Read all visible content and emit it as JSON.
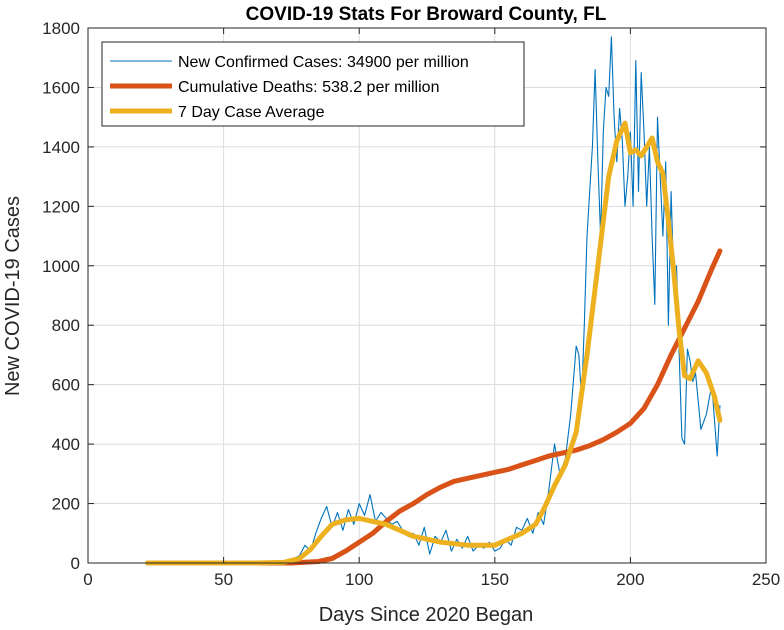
{
  "chart_data": {
    "type": "line",
    "title": "COVID-19 Stats For Broward County, FL",
    "xlabel": "Days Since 2020 Began",
    "ylabel": "New COVID-19 Cases",
    "xlim": [
      0,
      250
    ],
    "ylim": [
      0,
      1800
    ],
    "xticks": [
      0,
      50,
      100,
      150,
      200,
      250
    ],
    "yticks": [
      0,
      200,
      400,
      600,
      800,
      1000,
      1200,
      1400,
      1600,
      1800
    ],
    "grid": true,
    "legend_position": "top-left",
    "series": [
      {
        "name": "New Confirmed Cases: 34900 per million",
        "color": "#0072BD",
        "style": "thin",
        "x": [
          22,
          60,
          70,
          75,
          78,
          80,
          82,
          84,
          86,
          88,
          90,
          92,
          94,
          96,
          98,
          100,
          102,
          104,
          106,
          108,
          110,
          112,
          114,
          116,
          118,
          120,
          122,
          124,
          126,
          128,
          130,
          132,
          134,
          136,
          138,
          140,
          142,
          144,
          146,
          148,
          150,
          152,
          154,
          156,
          158,
          160,
          162,
          164,
          166,
          168,
          170,
          172,
          174,
          176,
          178,
          180,
          181,
          182,
          183,
          184,
          185,
          186,
          187,
          188,
          189,
          190,
          191,
          192,
          193,
          194,
          195,
          196,
          197,
          198,
          199,
          200,
          201,
          202,
          203,
          204,
          205,
          206,
          207,
          208,
          209,
          210,
          211,
          212,
          213,
          214,
          215,
          216,
          217,
          218,
          219,
          220,
          221,
          222,
          223,
          224,
          226,
          228,
          230,
          232,
          233
        ],
        "values": [
          0,
          0,
          3,
          10,
          25,
          60,
          40,
          100,
          150,
          190,
          120,
          170,
          110,
          180,
          130,
          200,
          160,
          230,
          140,
          170,
          150,
          130,
          140,
          110,
          90,
          100,
          60,
          120,
          30,
          90,
          70,
          110,
          40,
          80,
          50,
          90,
          40,
          60,
          50,
          70,
          40,
          50,
          80,
          60,
          120,
          110,
          150,
          100,
          170,
          130,
          250,
          400,
          300,
          350,
          500,
          730,
          700,
          550,
          800,
          1100,
          1250,
          1400,
          1660,
          1350,
          1100,
          1450,
          1600,
          1570,
          1770,
          1500,
          1350,
          1530,
          1420,
          1200,
          1300,
          1450,
          1200,
          1690,
          1250,
          1650,
          1450,
          1200,
          1400,
          1100,
          870,
          1500,
          1300,
          1100,
          1350,
          800,
          1250,
          950,
          1000,
          700,
          420,
          400,
          720,
          680,
          610,
          640,
          450,
          500,
          600,
          360,
          530
        ]
      },
      {
        "name": "Cumulative Deaths: 538.2 per million",
        "color": "#D95319",
        "style": "thick",
        "x": [
          22,
          50,
          75,
          85,
          90,
          95,
          100,
          105,
          110,
          115,
          120,
          125,
          130,
          135,
          140,
          145,
          150,
          155,
          160,
          165,
          170,
          175,
          180,
          185,
          190,
          195,
          200,
          205,
          210,
          215,
          220,
          225,
          230,
          233
        ],
        "values": [
          0,
          0,
          0,
          5,
          15,
          40,
          70,
          100,
          140,
          175,
          200,
          230,
          255,
          275,
          285,
          295,
          305,
          315,
          330,
          345,
          360,
          370,
          380,
          395,
          415,
          440,
          470,
          520,
          600,
          700,
          790,
          880,
          990,
          1050
        ]
      },
      {
        "name": "7 Day Case Average",
        "color": "#EDB120",
        "style": "thick",
        "x": [
          22,
          60,
          72,
          78,
          82,
          86,
          90,
          95,
          100,
          105,
          110,
          115,
          120,
          125,
          130,
          135,
          140,
          145,
          150,
          155,
          160,
          165,
          168,
          172,
          176,
          180,
          184,
          188,
          192,
          195,
          198,
          200,
          202,
          204,
          206,
          208,
          210,
          212,
          214,
          216,
          218,
          220,
          222,
          225,
          228,
          231,
          233
        ],
        "values": [
          0,
          0,
          2,
          15,
          45,
          90,
          130,
          145,
          150,
          140,
          130,
          110,
          90,
          80,
          70,
          65,
          60,
          60,
          60,
          80,
          100,
          130,
          180,
          260,
          330,
          440,
          700,
          1000,
          1300,
          1420,
          1480,
          1380,
          1390,
          1370,
          1400,
          1430,
          1350,
          1310,
          1150,
          980,
          780,
          630,
          620,
          680,
          640,
          560,
          480
        ]
      }
    ]
  }
}
